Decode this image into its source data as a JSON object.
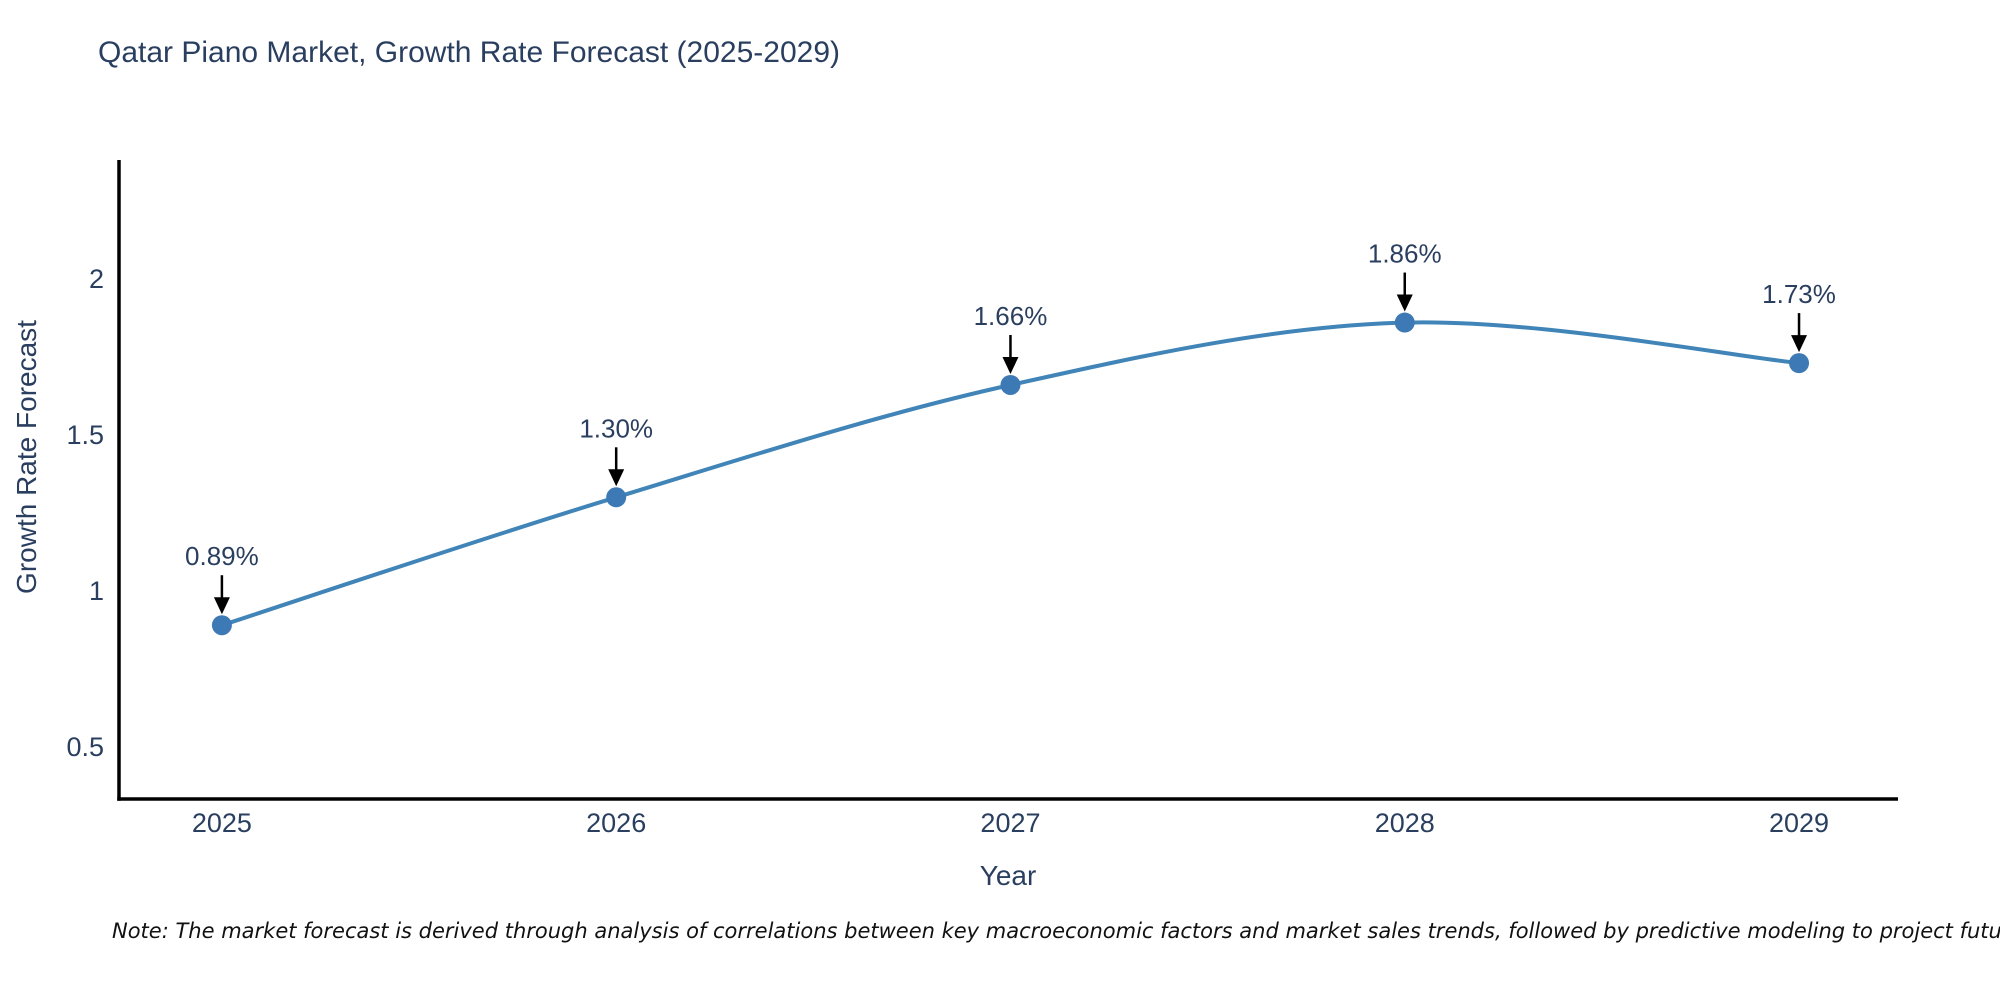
{
  "page": {
    "background": "#ffffff"
  },
  "title": {
    "text": "Qatar Piano Market, Growth Rate Forecast (2025-2029)",
    "color": "#2a3f5f"
  },
  "note": {
    "text": "Note: The market forecast is derived through analysis of correlations between key macroeconomic factors and market sales trends, followed by predictive modeling to project future sales"
  },
  "chart_data": {
    "type": "line",
    "title": "Qatar Piano Market, Growth Rate Forecast (2025-2029)",
    "xlabel": "Year",
    "ylabel": "Growth Rate Forecast",
    "x": [
      2025,
      2026,
      2027,
      2028,
      2029
    ],
    "values": [
      0.89,
      1.3,
      1.66,
      1.86,
      1.73
    ],
    "series": [
      {
        "name": "Growth Rate Forecast",
        "values": [
          0.89,
          1.3,
          1.66,
          1.86,
          1.73
        ]
      }
    ],
    "annotations": [
      "0.89%",
      "1.30%",
      "1.66%",
      "1.86%",
      "1.73%"
    ],
    "x_tick_labels": [
      "2025",
      "2026",
      "2027",
      "2028",
      "2029"
    ],
    "y_ticks": [
      0.5,
      1,
      1.5,
      2
    ],
    "y_tick_labels": [
      "0.5",
      "1",
      "1.5",
      "2"
    ],
    "xlim": [
      2024.739,
      2029.251
    ],
    "ylim": [
      0.333,
      2.381
    ],
    "grid": false,
    "legend_position": "none",
    "line_shape": "spline",
    "line_color": "#4185b8",
    "marker_color": "#3d7ab5",
    "marker_radius": 10,
    "line_width": 4,
    "axis_color": "#000000",
    "tick_color": "#2a3f5f",
    "annotation_color": "#2a3f5f",
    "arrow_color": "#000000"
  }
}
